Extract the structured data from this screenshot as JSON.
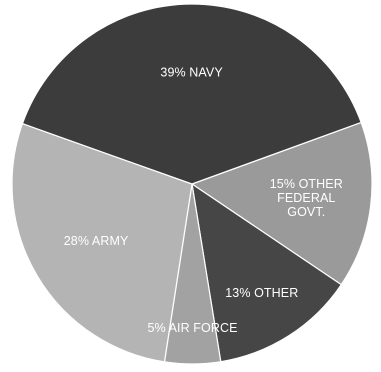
{
  "chart_data": {
    "type": "pie",
    "title": "",
    "slices": [
      {
        "label_lines": [
          "15% OTHER",
          "FEDERAL",
          "GOVT."
        ],
        "value": 15,
        "color": "#9a9a9a"
      },
      {
        "label_lines": [
          "13% OTHER"
        ],
        "value": 13,
        "color": "#464646"
      },
      {
        "label_lines": [
          "5% AIR FORCE"
        ],
        "value": 5,
        "color": "#a2a2a2"
      },
      {
        "label_lines": [
          "28% ARMY"
        ],
        "value": 28,
        "color": "#b4b4b4"
      },
      {
        "label_lines": [
          "39% NAVY"
        ],
        "value": 39,
        "color": "#3c3c3c"
      }
    ],
    "start_angle_degrees": 70
  }
}
